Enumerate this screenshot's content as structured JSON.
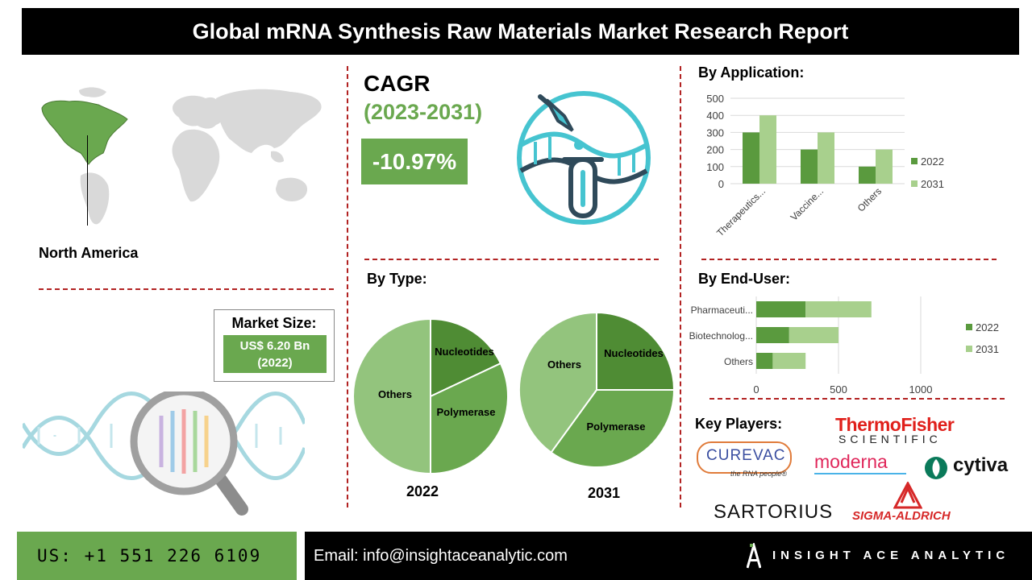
{
  "header": {
    "title": "Global mRNA Synthesis Raw Materials Market Research Report"
  },
  "region": {
    "label": "North America"
  },
  "cagr": {
    "title": "CAGR",
    "years": "(2023-2031)",
    "value": "-10.97%"
  },
  "market_size": {
    "label": "Market Size:",
    "value_line1": "US$ 6.20 Bn",
    "value_line2": "(2022)"
  },
  "sections": {
    "by_application": "By Application:",
    "by_type": "By Type:",
    "by_end_user": "By End-User:",
    "key_players": "Key Players:"
  },
  "key_players": {
    "thermo_line1": "ThermoFisher",
    "thermo_line2": "SCIENTIFIC",
    "curevac": "CUREVAC",
    "curevac_tag": "the RNA people®",
    "moderna": "moderna",
    "cytiva": "cytiva",
    "sartorius": "SARTORIUS",
    "sigma": "SIGMA-ALDRICH"
  },
  "footer": {
    "phone": "US: +1 551 226 6109",
    "email": "Email: info@insightaceanalytic.com",
    "brand": "INSIGHT ACE ANALYTIC"
  },
  "colors": {
    "dark_green": "#5a9a3e",
    "light_green": "#a8d08d",
    "accent_green": "#6aa84f",
    "divider_red": "#b22222"
  },
  "chart_data": [
    {
      "type": "bar",
      "categories": [
        "Therapeutics...",
        "Vaccine...",
        "Others"
      ],
      "series": [
        {
          "name": "2022",
          "values": [
            300,
            200,
            100
          ]
        },
        {
          "name": "2031",
          "values": [
            400,
            300,
            200
          ]
        }
      ],
      "ylim": [
        0,
        500
      ],
      "yticks": [
        0,
        100,
        200,
        300,
        400,
        500
      ],
      "grid": true,
      "legend": "right"
    },
    {
      "type": "pie",
      "title": "2022",
      "slices": [
        {
          "label": "Nucleotides",
          "value": 18
        },
        {
          "label": "Polymerase",
          "value": 32
        },
        {
          "label": "Others",
          "value": 50
        }
      ]
    },
    {
      "type": "pie",
      "title": "2031",
      "slices": [
        {
          "label": "Nucleotides",
          "value": 25
        },
        {
          "label": "Polymerase",
          "value": 35
        },
        {
          "label": "Others",
          "value": 40
        }
      ]
    },
    {
      "type": "bar",
      "orientation": "horizontal",
      "stacked": true,
      "categories": [
        "Pharmaceuti...",
        "Biotechnolog...",
        "Others"
      ],
      "series": [
        {
          "name": "2022",
          "values": [
            300,
            200,
            100
          ]
        },
        {
          "name": "2031",
          "values": [
            400,
            300,
            200
          ]
        }
      ],
      "xlim": [
        0,
        1000
      ],
      "xticks": [
        0,
        500,
        1000
      ],
      "grid": true,
      "legend": "right"
    }
  ]
}
